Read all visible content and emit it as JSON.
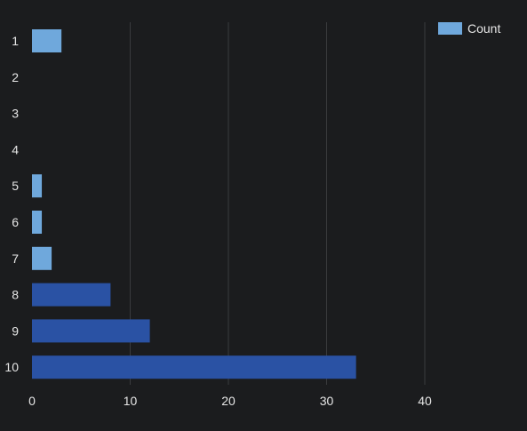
{
  "chart_data": {
    "type": "bar",
    "orientation": "horizontal",
    "categories": [
      "1",
      "2",
      "3",
      "4",
      "5",
      "6",
      "7",
      "8",
      "9",
      "10"
    ],
    "series": [
      {
        "name": "Count",
        "values": [
          3,
          0,
          0,
          0,
          1,
          1,
          2,
          8,
          12,
          33
        ]
      }
    ],
    "xlim": [
      0,
      50
    ],
    "xticks": [
      "0",
      "10",
      "20",
      "30",
      "40"
    ],
    "grid": true,
    "legend": "top-right",
    "colors": {
      "background": "#1b1c1e",
      "grid": "#3a3b3e",
      "text": "#e6e6e6",
      "legend_swatch": "#6fa8dc",
      "bar_light": "#6fa8dc",
      "bar_dark": "#2a52a4"
    }
  }
}
